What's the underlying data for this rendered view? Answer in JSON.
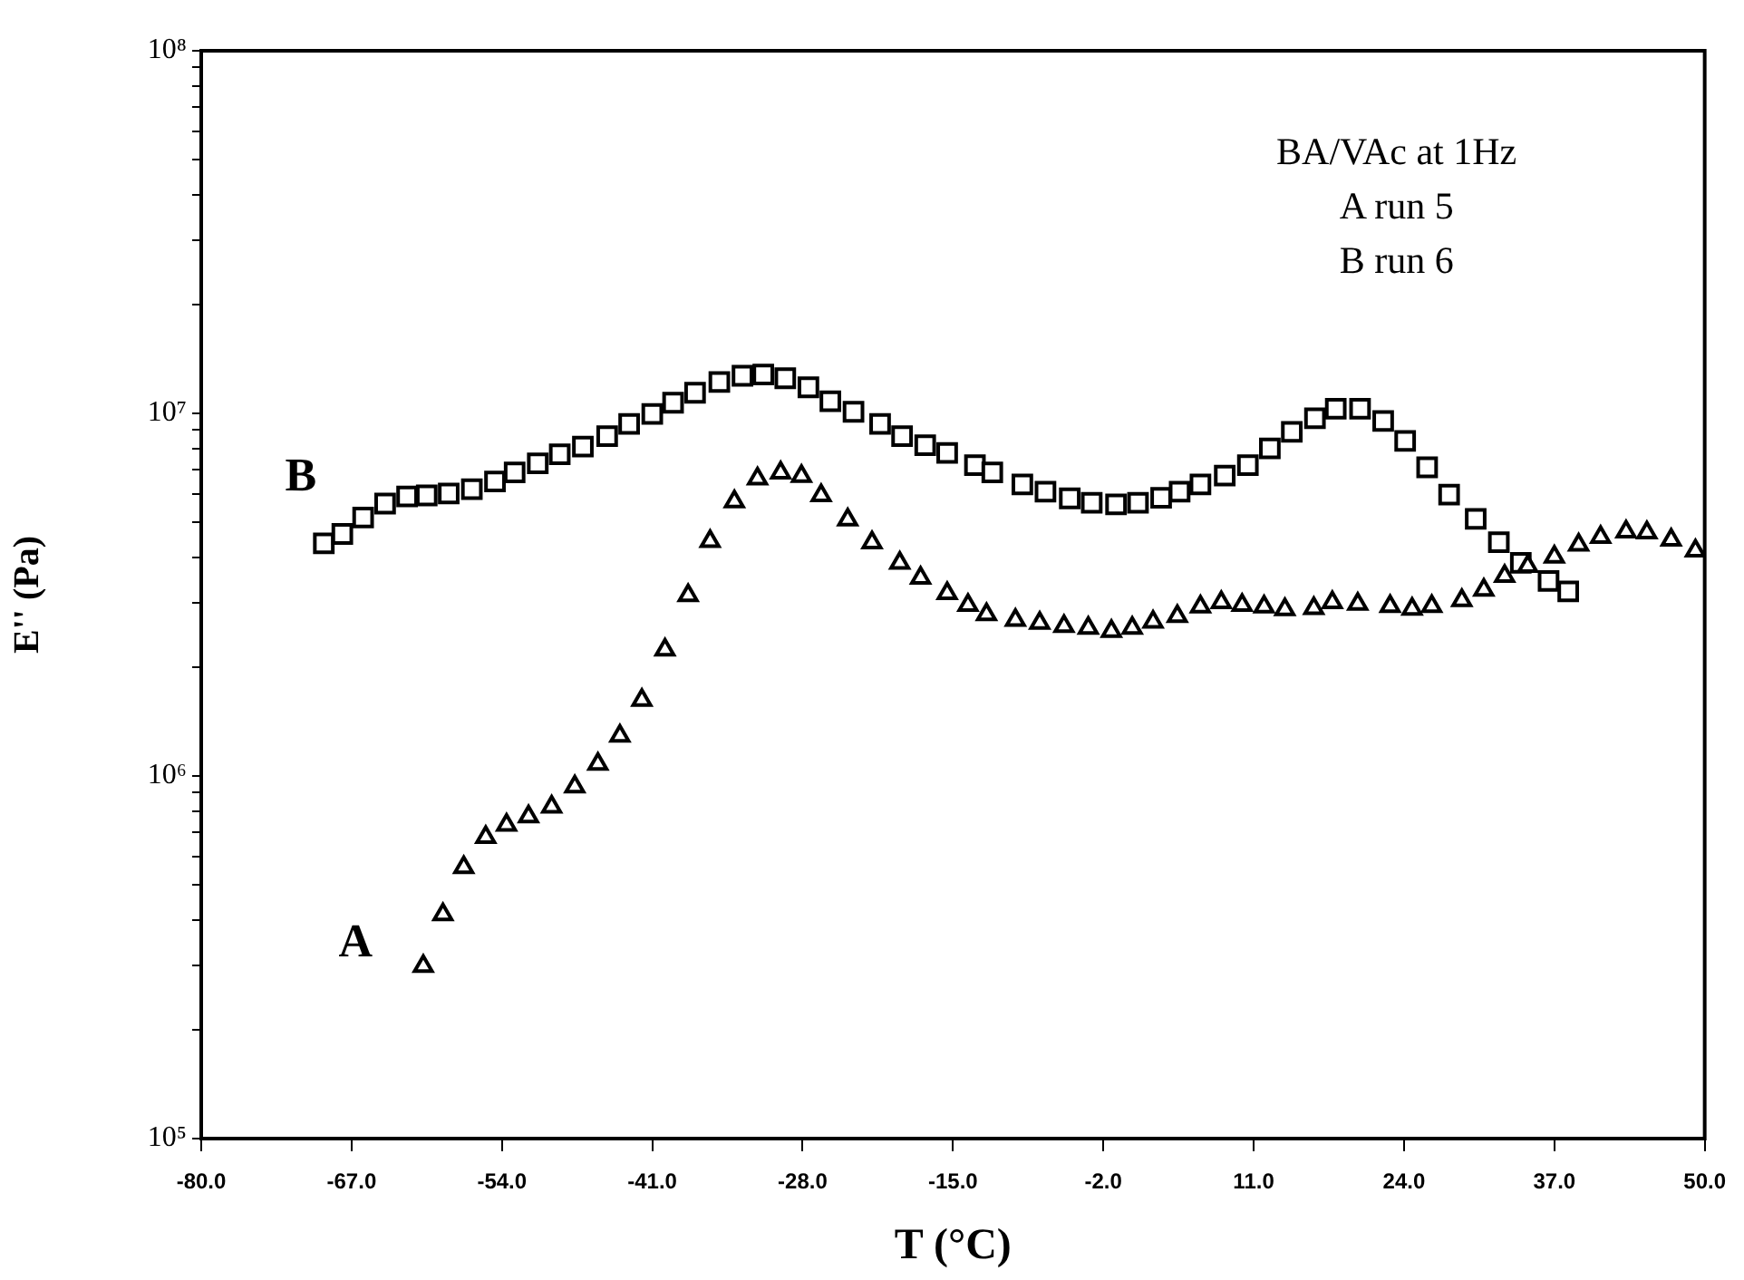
{
  "chart_data": {
    "type": "scatter",
    "xlabel": "T (°C)",
    "ylabel": "E'' (Pa)",
    "log": "y",
    "grid": false,
    "legend": false,
    "annotations": [
      "BA/VAc at 1Hz",
      "A run 5",
      "B run 6"
    ],
    "xlim": [
      -80,
      50
    ],
    "xticks": [
      {
        "value": -80,
        "label": "-80.0"
      },
      {
        "value": -67,
        "label": "-67.0"
      },
      {
        "value": -54,
        "label": "-54.0"
      },
      {
        "value": -41,
        "label": "-41.0"
      },
      {
        "value": -28,
        "label": "-28.0"
      },
      {
        "value": -15,
        "label": "-15.0"
      },
      {
        "value": -2,
        "label": "-2.0"
      },
      {
        "value": 11,
        "label": "11.0"
      },
      {
        "value": 24,
        "label": "24.0"
      },
      {
        "value": 37,
        "label": "37.0"
      },
      {
        "value": 50,
        "label": "50.0"
      }
    ],
    "ylim": [
      100000,
      100000000
    ],
    "yticks": [
      {
        "value": 100000,
        "label": "10⁵"
      },
      {
        "value": 200000,
        "label": null
      },
      {
        "value": 300000,
        "label": null
      },
      {
        "value": 400000,
        "label": null
      },
      {
        "value": 500000,
        "label": null
      },
      {
        "value": 600000,
        "label": null
      },
      {
        "value": 700000,
        "label": null
      },
      {
        "value": 800000,
        "label": null
      },
      {
        "value": 900000,
        "label": null
      },
      {
        "value": 1000000,
        "label": "10⁶"
      },
      {
        "value": 2000000,
        "label": null
      },
      {
        "value": 3000000,
        "label": null
      },
      {
        "value": 4000000,
        "label": null
      },
      {
        "value": 5000000,
        "label": null
      },
      {
        "value": 6000000,
        "label": null
      },
      {
        "value": 7000000,
        "label": null
      },
      {
        "value": 8000000,
        "label": null
      },
      {
        "value": 9000000,
        "label": null
      },
      {
        "value": 10000000,
        "label": "10⁷"
      },
      {
        "value": 20000000,
        "label": null
      },
      {
        "value": 30000000,
        "label": null
      },
      {
        "value": 40000000,
        "label": null
      },
      {
        "value": 50000000,
        "label": null
      },
      {
        "value": 60000000,
        "label": null
      },
      {
        "value": 70000000,
        "label": null
      },
      {
        "value": 80000000,
        "label": null
      },
      {
        "value": 90000000,
        "label": null
      },
      {
        "value": 100000000,
        "label": "10⁸"
      }
    ],
    "series": [
      {
        "name": "A",
        "color": "#000000",
        "marker": "triangle",
        "x": [
          -60.8,
          -59.1,
          -57.3,
          -55.4,
          -53.6,
          -51.7,
          -49.7,
          -47.7,
          -45.7,
          -43.8,
          -41.9,
          -39.9,
          -37.9,
          -36.0,
          -33.9,
          -31.9,
          -29.9,
          -28.1,
          -26.4,
          -24.1,
          -22.0,
          -19.6,
          -17.8,
          -15.5,
          -13.7,
          -12.1,
          -9.6,
          -7.5,
          -5.4,
          -3.3,
          -1.3,
          0.5,
          2.3,
          4.4,
          6.4,
          8.2,
          10.0,
          11.9,
          13.7,
          16.2,
          17.8,
          20.0,
          22.8,
          24.7,
          26.4,
          29.0,
          30.9,
          32.7,
          34.7,
          37.0,
          39.1,
          41.0,
          43.2,
          45.0,
          47.1,
          49.2
        ],
        "values": [
          299000,
          415000,
          560000,
          678000,
          733000,
          773000,
          822000,
          935000,
          1080000,
          1290000,
          1620000,
          2230000,
          3150000,
          4440000,
          5710000,
          6610000,
          6860000,
          6710000,
          5940000,
          5090000,
          4400000,
          3870000,
          3520000,
          3190000,
          2960000,
          2790000,
          2690000,
          2640000,
          2590000,
          2560000,
          2510000,
          2560000,
          2660000,
          2760000,
          2930000,
          3010000,
          2960000,
          2930000,
          2880000,
          2900000,
          3010000,
          2980000,
          2940000,
          2890000,
          2940000,
          3050000,
          3260000,
          3560000,
          3790000,
          4020000,
          4340000,
          4560000,
          4720000,
          4690000,
          4480000,
          4180000
        ]
      },
      {
        "name": "B",
        "color": "#000000",
        "marker": "square",
        "x": [
          -69.4,
          -67.8,
          -66.0,
          -64.1,
          -62.2,
          -60.5,
          -58.6,
          -56.6,
          -54.6,
          -52.9,
          -50.9,
          -49.0,
          -47.0,
          -44.9,
          -43.0,
          -41.0,
          -39.2,
          -37.3,
          -35.2,
          -33.2,
          -31.4,
          -29.5,
          -27.5,
          -25.6,
          -23.6,
          -21.3,
          -19.4,
          -17.4,
          -15.5,
          -13.1,
          -11.6,
          -9.0,
          -7.0,
          -4.9,
          -3.0,
          -0.9,
          1.0,
          3.0,
          4.6,
          6.4,
          8.5,
          10.5,
          12.4,
          14.3,
          16.3,
          18.1,
          20.2,
          22.2,
          24.1,
          26.0,
          27.9,
          30.2,
          32.2,
          34.1,
          36.5,
          38.2
        ],
        "values": [
          4380000,
          4650000,
          5160000,
          5640000,
          5900000,
          5940000,
          6010000,
          6180000,
          6490000,
          6870000,
          7280000,
          7710000,
          8100000,
          8650000,
          9350000,
          9960000,
          10700000,
          11400000,
          12200000,
          12700000,
          12800000,
          12500000,
          11800000,
          10800000,
          10100000,
          9350000,
          8650000,
          8170000,
          7780000,
          7200000,
          6870000,
          6370000,
          6080000,
          5830000,
          5670000,
          5610000,
          5670000,
          5850000,
          6080000,
          6370000,
          6740000,
          7200000,
          8010000,
          8890000,
          9700000,
          10300000,
          10300000,
          9530000,
          8400000,
          7100000,
          5970000,
          5120000,
          4410000,
          3870000,
          3450000,
          3230000
        ]
      }
    ]
  }
}
